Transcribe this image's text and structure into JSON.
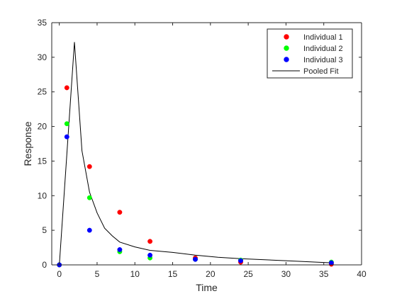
{
  "chart_data": {
    "type": "scatter",
    "title": "",
    "xlabel": "Time",
    "ylabel": "Response",
    "xlim": [
      -1,
      40
    ],
    "ylim": [
      0,
      35
    ],
    "xticks": [
      0,
      5,
      10,
      15,
      20,
      25,
      30,
      35,
      40
    ],
    "yticks": [
      0,
      5,
      10,
      15,
      20,
      25,
      30,
      35
    ],
    "grid": false,
    "legend_position": "top-right",
    "series": [
      {
        "name": "Individual 1",
        "type": "scatter",
        "color": "#ff0000",
        "x": [
          0,
          1,
          4,
          8,
          12,
          18,
          24,
          36
        ],
        "y": [
          0,
          25.6,
          14.2,
          7.6,
          3.4,
          1.0,
          0.4,
          0.1
        ]
      },
      {
        "name": "Individual 2",
        "type": "scatter",
        "color": "#00ff00",
        "x": [
          0,
          1,
          4,
          8,
          12,
          18,
          24,
          36
        ],
        "y": [
          0,
          20.4,
          9.7,
          1.9,
          1.0,
          0.8,
          0.7,
          0.4
        ]
      },
      {
        "name": "Individual 3",
        "type": "scatter",
        "color": "#0000ff",
        "x": [
          0,
          1,
          4,
          8,
          12,
          18,
          24,
          36
        ],
        "y": [
          0,
          18.5,
          5.0,
          2.2,
          1.4,
          0.8,
          0.6,
          0.3
        ]
      },
      {
        "name": "Pooled Fit",
        "type": "line",
        "color": "#000000",
        "x": [
          0,
          1,
          2,
          3,
          4,
          5,
          6,
          7,
          8,
          10,
          12,
          15,
          18,
          21,
          24,
          30,
          36
        ],
        "y": [
          0,
          16,
          32.2,
          16.5,
          10.5,
          7.5,
          5.3,
          4.2,
          3.3,
          2.6,
          2.1,
          1.8,
          1.4,
          1.1,
          0.9,
          0.6,
          0.3
        ]
      }
    ]
  }
}
